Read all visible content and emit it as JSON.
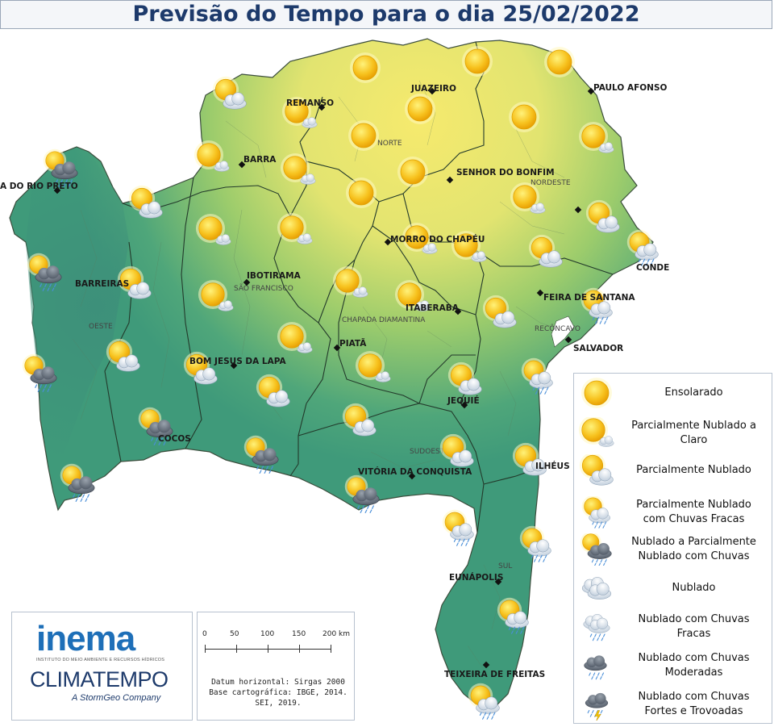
{
  "title": "Previsão do Tempo para o dia 25/02/2022",
  "cities": [
    {
      "name": "JUAZEIRO"
    },
    {
      "name": "PAULO AFONSO"
    },
    {
      "name": "REMANSO"
    },
    {
      "name": "BARRA"
    },
    {
      "name": "SENHOR DO BONFIM"
    },
    {
      "name": "A DO RIO PRETO"
    },
    {
      "name": "CONDE"
    },
    {
      "name": "MORRO DO CHAPÉU"
    },
    {
      "name": "BARREIRAS"
    },
    {
      "name": "IBOTIRAMA"
    },
    {
      "name": "FEIRA DE SANTANA"
    },
    {
      "name": "ITABERABA"
    },
    {
      "name": "SALVADOR"
    },
    {
      "name": "PIATÃ"
    },
    {
      "name": "BOM JESUS DA LAPA"
    },
    {
      "name": "JEQUIÉ"
    },
    {
      "name": "COCOS"
    },
    {
      "name": "VITÓRIA DA CONQUISTA"
    },
    {
      "name": "ILHÉUS"
    },
    {
      "name": "EUNÁPOLIS"
    },
    {
      "name": "TEIXEIRA DE FREITAS"
    }
  ],
  "regions": [
    "NORTE",
    "NORDESTE",
    "SÃO FRANCISCO",
    "OESTE",
    "CHAPADA DIAMANTINA",
    "RECÔNCAVO",
    "SUDOESTE",
    "SUL"
  ],
  "legend": [
    {
      "icon": "sunny-icon",
      "line1": "Ensolarado",
      "line2": ""
    },
    {
      "icon": "partly-cloudy-to-clear-icon",
      "line1": "Parcialmente Nublado a",
      "line2": "Claro"
    },
    {
      "icon": "partly-cloudy-icon",
      "line1": "Parcialmente Nublado",
      "line2": ""
    },
    {
      "icon": "partly-cloudy-light-rain-icon",
      "line1": "Parcialmente Nublado",
      "line2": "com Chuvas Fracas"
    },
    {
      "icon": "cloudy-to-partly-cloudy-rain-icon",
      "line1": "Nublado a Parcialmente",
      "line2": "Nublado com Chuvas"
    },
    {
      "icon": "cloudy-icon",
      "line1": "Nublado",
      "line2": ""
    },
    {
      "icon": "cloudy-light-rain-icon",
      "line1": "Nublado com Chuvas",
      "line2": "Fracas"
    },
    {
      "icon": "cloudy-moderate-rain-icon",
      "line1": "Nublado com Chuvas",
      "line2": "Moderadas"
    },
    {
      "icon": "cloudy-heavy-rain-thunder-icon",
      "line1": "Nublado com Chuvas",
      "line2": "Fortes e Trovoadas"
    }
  ],
  "logos": {
    "inema": "inema",
    "inema_sub": "INSTITUTO DO MEIO AMBIENTE E RECURSOS HÍDRICOS",
    "climatempo": "CLIMATEMPO",
    "climatempo_sub": "A StormGeo Company"
  },
  "scale": {
    "ticks": [
      "0",
      "50",
      "100",
      "150",
      "200 km"
    ],
    "datum_1": "Datum horizontal: Sirgas 2000",
    "datum_2": "Base cartográfica: IBGE, 2014.",
    "datum_3": "SEI, 2019."
  },
  "colors": {
    "dry": "#f2e96a",
    "mid": "#9fcf6b",
    "humid": "#3f9a7a",
    "title": "#1d3a6b"
  }
}
